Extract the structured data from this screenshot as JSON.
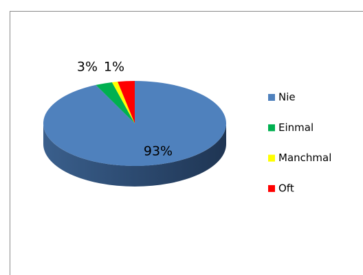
{
  "chart_data": {
    "type": "pie3d",
    "categories": [
      "Nie",
      "Einmal",
      "Manchmal",
      "Oft"
    ],
    "values": [
      93,
      3,
      1,
      3
    ],
    "value_labels": [
      "93%",
      "3%",
      "1%",
      null
    ],
    "colors": [
      "#4f81bd",
      "#00b050",
      "#ffff00",
      "#ff0000"
    ],
    "legend": "right"
  }
}
